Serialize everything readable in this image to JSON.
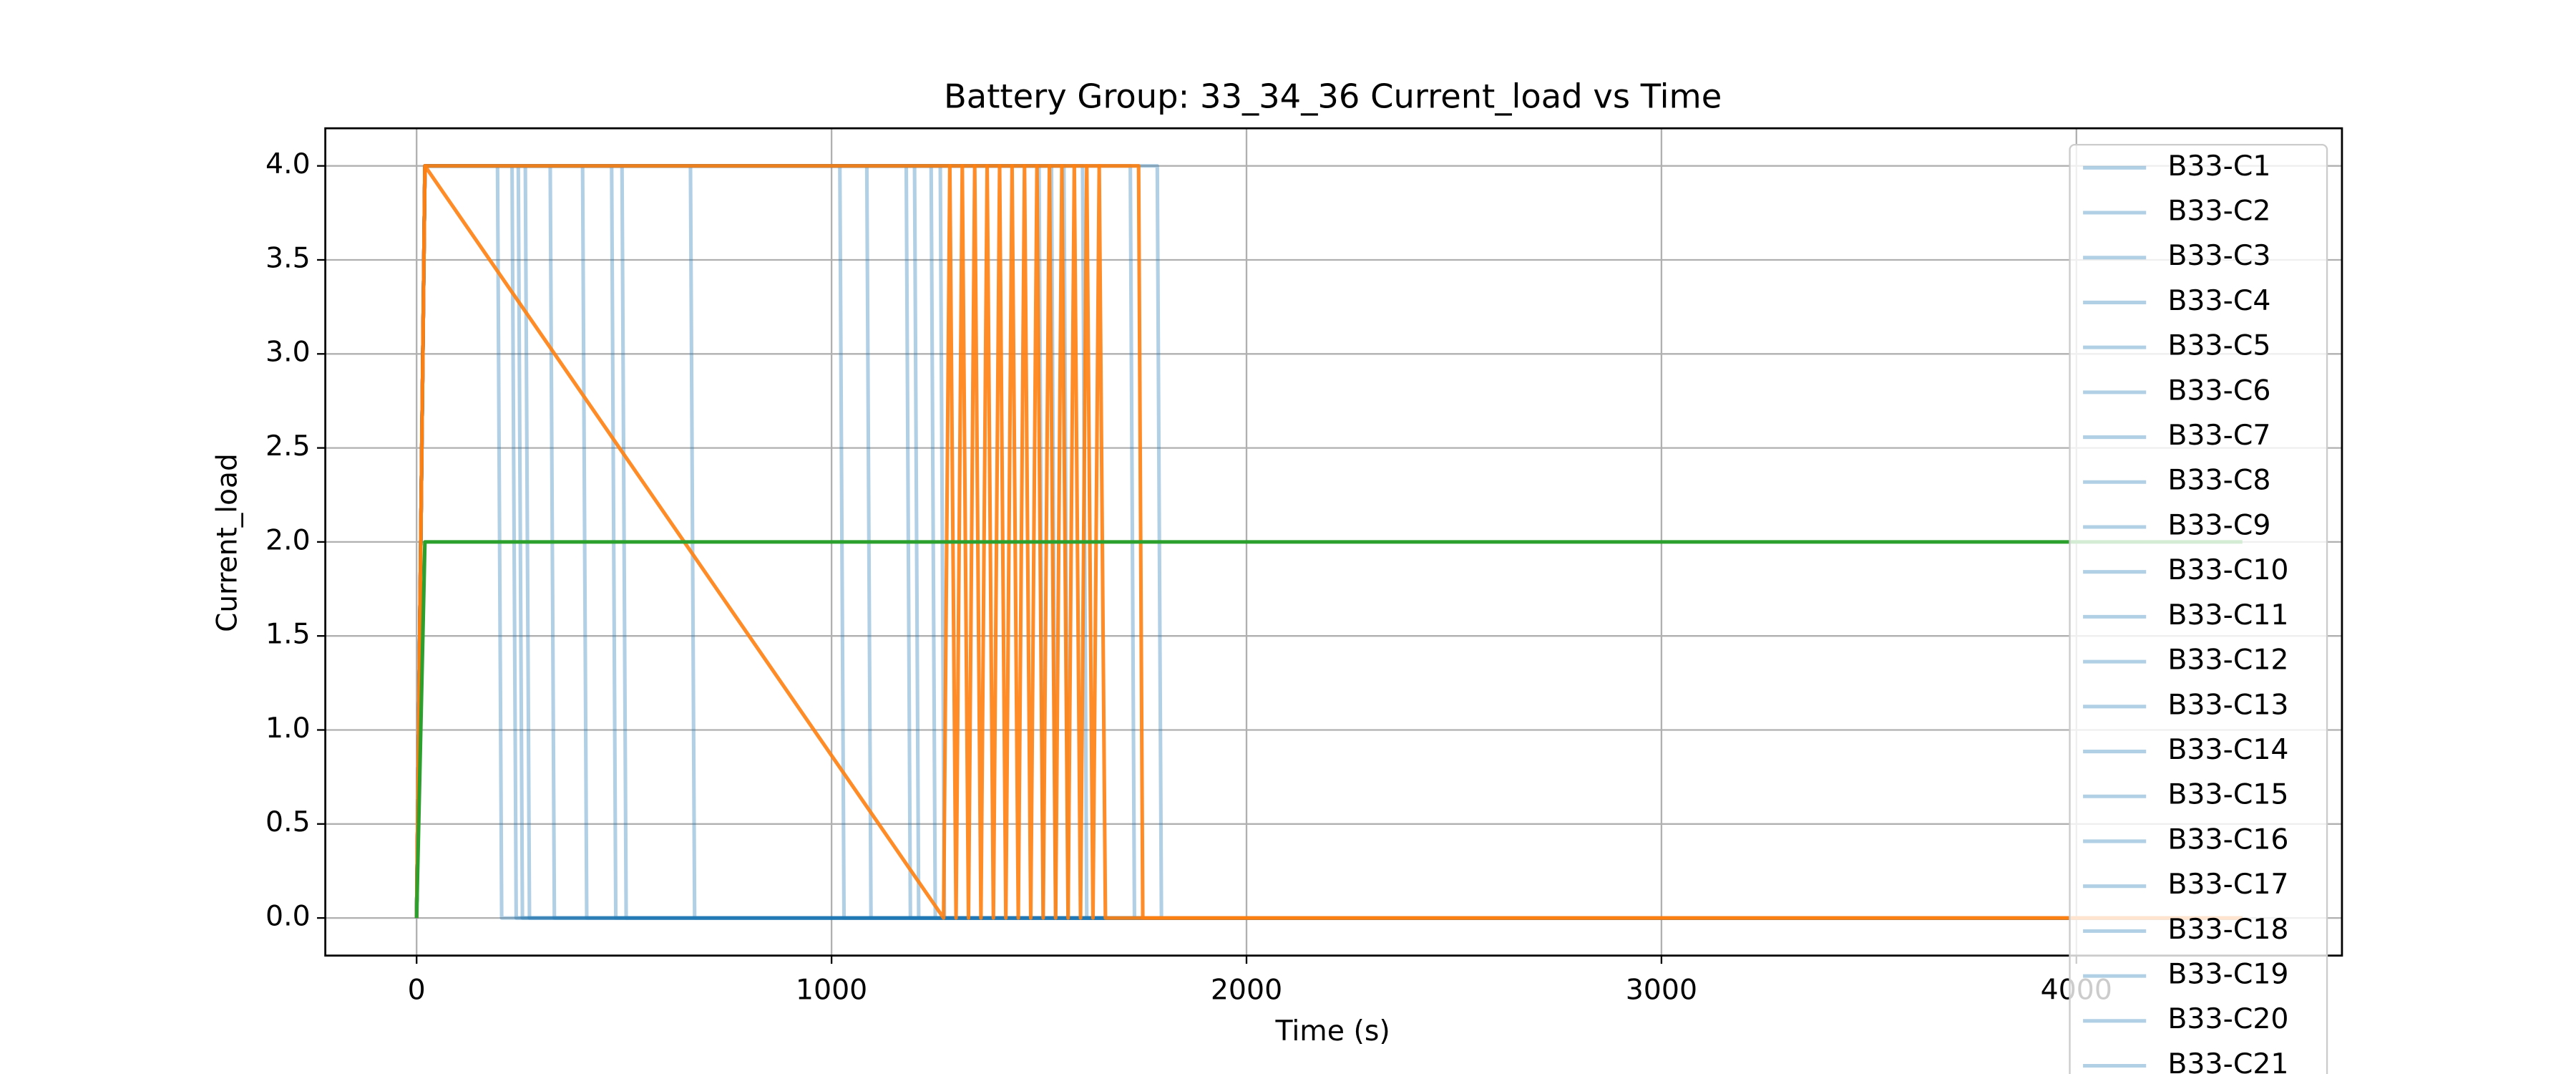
{
  "chart_data": {
    "type": "line",
    "title": "Battery Group: 33_34_36 Current_load vs Time",
    "x_label": "Time (s)",
    "y_label": "Current_load",
    "xlim": [
      -220,
      4640
    ],
    "ylim": [
      -0.2,
      4.2
    ],
    "xticks": [
      0,
      1000,
      2000,
      3000,
      4000
    ],
    "yticks": [
      {
        "value": 0,
        "label": "0.0"
      },
      0.5,
      {
        "value": 1,
        "label": "1.0"
      },
      1.5,
      {
        "value": 2,
        "label": "2.0"
      },
      2.5,
      {
        "value": 3,
        "label": "3.0"
      },
      3.5,
      {
        "value": 4,
        "label": "4.0"
      }
    ],
    "grid": true,
    "legend": "upper right",
    "series": [
      {
        "name": "B33-C1",
        "color": "#1f77b4",
        "alpha": 0.35,
        "x": [
          0,
          20,
          195,
          205,
          4400
        ],
        "values": [
          0,
          4,
          4,
          0,
          0
        ]
      },
      {
        "name": "B33-C2",
        "color": "#1f77b4",
        "alpha": 0.35,
        "x": [
          0,
          20,
          230,
          240,
          4400
        ],
        "values": [
          0,
          4,
          4,
          0,
          0
        ]
      },
      {
        "name": "B33-C3",
        "color": "#1f77b4",
        "alpha": 0.35,
        "x": [
          0,
          20,
          245,
          255,
          4400
        ],
        "values": [
          0,
          4,
          4,
          0,
          0
        ]
      },
      {
        "name": "B33-C4",
        "color": "#1f77b4",
        "alpha": 0.35,
        "x": [
          0,
          20,
          262,
          272,
          4400
        ],
        "values": [
          0,
          4,
          4,
          0,
          0
        ]
      },
      {
        "name": "B33-C5",
        "color": "#1f77b4",
        "alpha": 0.35,
        "x": [
          0,
          20,
          322,
          332,
          4400
        ],
        "values": [
          0,
          4,
          4,
          0,
          0
        ]
      },
      {
        "name": "B33-C6",
        "color": "#1f77b4",
        "alpha": 0.35,
        "x": [
          0,
          20,
          400,
          410,
          4400
        ],
        "values": [
          0,
          4,
          4,
          0,
          0
        ]
      },
      {
        "name": "B33-C7",
        "color": "#1f77b4",
        "alpha": 0.35,
        "x": [
          0,
          20,
          470,
          480,
          4400
        ],
        "values": [
          0,
          4,
          4,
          0,
          0
        ]
      },
      {
        "name": "B33-C8",
        "color": "#1f77b4",
        "alpha": 0.35,
        "x": [
          0,
          20,
          495,
          505,
          4400
        ],
        "values": [
          0,
          4,
          4,
          0,
          0
        ]
      },
      {
        "name": "B33-C9",
        "color": "#1f77b4",
        "alpha": 0.35,
        "x": [
          0,
          20,
          660,
          670,
          4400
        ],
        "values": [
          0,
          4,
          4,
          0,
          0
        ]
      },
      {
        "name": "B33-C10",
        "color": "#1f77b4",
        "alpha": 0.35,
        "x": [
          0,
          20,
          1020,
          1030,
          4400
        ],
        "values": [
          0,
          4,
          4,
          0,
          0
        ]
      },
      {
        "name": "B33-C11",
        "color": "#1f77b4",
        "alpha": 0.35,
        "x": [
          0,
          20,
          1085,
          1095,
          4400
        ],
        "values": [
          0,
          4,
          4,
          0,
          0
        ]
      },
      {
        "name": "B33-C12",
        "color": "#1f77b4",
        "alpha": 0.35,
        "x": [
          0,
          20,
          1180,
          1190,
          4400
        ],
        "values": [
          0,
          4,
          4,
          0,
          0
        ]
      },
      {
        "name": "B33-C13",
        "color": "#1f77b4",
        "alpha": 0.35,
        "x": [
          0,
          20,
          1200,
          1210,
          4400
        ],
        "values": [
          0,
          4,
          4,
          0,
          0
        ]
      },
      {
        "name": "B33-C14",
        "color": "#1f77b4",
        "alpha": 0.35,
        "x": [
          0,
          20,
          1240,
          1250,
          4400
        ],
        "values": [
          0,
          4,
          4,
          0,
          0
        ]
      },
      {
        "name": "B33-C15",
        "color": "#1f77b4",
        "alpha": 0.35,
        "x": [
          0,
          20,
          1262,
          1272,
          4400
        ],
        "values": [
          0,
          4,
          4,
          0,
          0
        ]
      },
      {
        "name": "B33-C16",
        "color": "#1f77b4",
        "alpha": 0.35,
        "x": [
          0,
          20,
          1500,
          1510,
          4400
        ],
        "values": [
          0,
          4,
          4,
          0,
          0
        ]
      },
      {
        "name": "B33-C17",
        "color": "#1f77b4",
        "alpha": 0.35,
        "x": [
          0,
          20,
          1530,
          1540,
          4400
        ],
        "values": [
          0,
          4,
          4,
          0,
          0
        ]
      },
      {
        "name": "B33-C18",
        "color": "#1f77b4",
        "alpha": 0.35,
        "x": [
          0,
          20,
          1560,
          1570,
          4400
        ],
        "values": [
          0,
          4,
          4,
          0,
          0
        ]
      },
      {
        "name": "B33-C19",
        "color": "#1f77b4",
        "alpha": 0.35,
        "x": [
          0,
          20,
          1605,
          1615,
          4400
        ],
        "values": [
          0,
          4,
          4,
          0,
          0
        ]
      },
      {
        "name": "B33-C20",
        "color": "#1f77b4",
        "alpha": 0.35,
        "x": [
          0,
          20,
          1720,
          1730,
          4400
        ],
        "values": [
          0,
          4,
          4,
          0,
          0
        ]
      },
      {
        "name": "B33-C21",
        "color": "#1f77b4",
        "alpha": 0.35,
        "x": [
          0,
          20,
          1785,
          1795,
          4400
        ],
        "values": [
          0,
          4,
          4,
          0,
          0
        ]
      },
      {
        "color": "#ff7f0e",
        "alpha": 0.9,
        "x": [
          0,
          20,
          1270,
          1285,
          1300,
          1315,
          1330,
          1345,
          1360,
          1375,
          1390,
          1405,
          1420,
          1435,
          1450,
          1465,
          1480,
          1495,
          1510,
          1525,
          1540,
          1555,
          1570,
          1585,
          1600,
          1615,
          1630,
          1645,
          1660,
          4400
        ],
        "values": [
          0,
          4,
          0,
          4,
          0,
          4,
          0,
          4,
          0,
          4,
          0,
          4,
          0,
          4,
          0,
          4,
          0,
          4,
          0,
          4,
          0,
          4,
          0,
          4,
          0,
          4,
          0,
          4,
          0,
          0
        ]
      },
      {
        "color": "#ff7f0e",
        "alpha": 0.9,
        "x": [
          0,
          20,
          1740,
          1750,
          4400
        ],
        "values": [
          0,
          4,
          4,
          0,
          0
        ]
      },
      {
        "color": "#2ca02c",
        "alpha": 1,
        "x": [
          0,
          20,
          4400
        ],
        "values": [
          0,
          2,
          2
        ]
      }
    ]
  }
}
